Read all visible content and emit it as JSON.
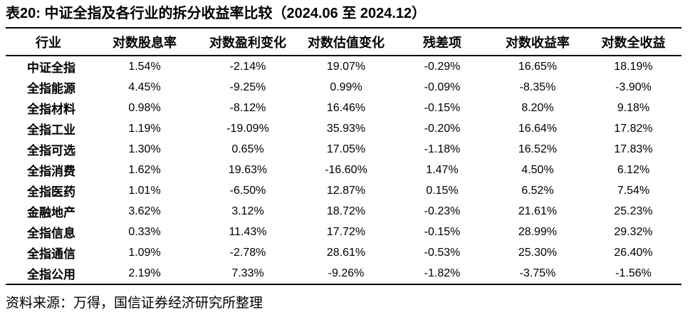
{
  "title": "表20: 中证全指及各行业的拆分收益率比较（2024.06 至 2024.12）",
  "table": {
    "columns": [
      "行业",
      "对数股息率",
      "对数盈利变化",
      "对数估值变化",
      "残差项",
      "对数收益率",
      "对数全收益"
    ],
    "rows": [
      {
        "label": "中证全指",
        "values": [
          "1.54%",
          "-2.14%",
          "19.07%",
          "-0.29%",
          "16.65%",
          "18.19%"
        ]
      },
      {
        "label": "全指能源",
        "values": [
          "4.45%",
          "-9.25%",
          "0.99%",
          "-0.09%",
          "-8.35%",
          "-3.90%"
        ]
      },
      {
        "label": "全指材料",
        "values": [
          "0.98%",
          "-8.12%",
          "16.46%",
          "-0.15%",
          "8.20%",
          "9.18%"
        ]
      },
      {
        "label": "全指工业",
        "values": [
          "1.19%",
          "-19.09%",
          "35.93%",
          "-0.20%",
          "16.64%",
          "17.82%"
        ]
      },
      {
        "label": "全指可选",
        "values": [
          "1.30%",
          "0.65%",
          "17.05%",
          "-1.18%",
          "16.52%",
          "17.83%"
        ]
      },
      {
        "label": "全指消费",
        "values": [
          "1.62%",
          "19.63%",
          "-16.60%",
          "1.47%",
          "4.50%",
          "6.12%"
        ]
      },
      {
        "label": "全指医药",
        "values": [
          "1.01%",
          "-6.50%",
          "12.87%",
          "0.15%",
          "6.52%",
          "7.54%"
        ]
      },
      {
        "label": "金融地产",
        "values": [
          "3.62%",
          "3.12%",
          "18.72%",
          "-0.23%",
          "21.61%",
          "25.23%"
        ]
      },
      {
        "label": "全指信息",
        "values": [
          "0.33%",
          "11.43%",
          "17.72%",
          "-0.15%",
          "28.99%",
          "29.32%"
        ]
      },
      {
        "label": "全指通信",
        "values": [
          "1.09%",
          "-2.78%",
          "28.61%",
          "-0.53%",
          "25.30%",
          "26.40%"
        ]
      },
      {
        "label": "全指公用",
        "values": [
          "2.19%",
          "7.33%",
          "-9.26%",
          "-1.82%",
          "-3.75%",
          "-1.56%"
        ]
      }
    ]
  },
  "source_note": "资料来源：万得，国信证券经济研究所整理",
  "colors": {
    "text": "#000000",
    "rule": "#000000",
    "background": "#ffffff"
  }
}
